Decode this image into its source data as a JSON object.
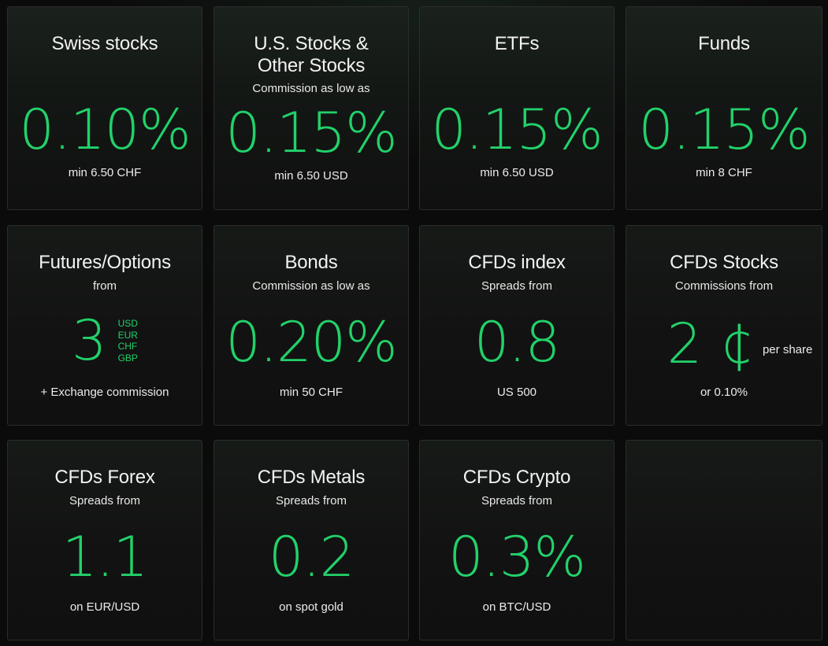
{
  "cards": [
    {
      "title": "Swiss stocks",
      "subtitle": "",
      "value": "0.10%",
      "footnote": "min 6.50 CHF"
    },
    {
      "title": "U.S. Stocks & Other Stocks",
      "subtitle": "Commission as low as",
      "value": "0.15%",
      "footnote": "min 6.50 USD"
    },
    {
      "title": "ETFs",
      "subtitle": "",
      "value": "0.15%",
      "footnote": "min 6.50 USD"
    },
    {
      "title": "Funds",
      "subtitle": "",
      "value": "0.15%",
      "footnote": "min 8 CHF"
    },
    {
      "title": "Futures/Options",
      "subtitle": "from",
      "value": "3",
      "currencies": [
        "USD",
        "EUR",
        "CHF",
        "GBP"
      ],
      "footnote": "+ Exchange commission"
    },
    {
      "title": "Bonds",
      "subtitle": "Commission as low as",
      "value": "0.20%",
      "footnote": "min 50 CHF"
    },
    {
      "title": "CFDs index",
      "subtitle": "Spreads from",
      "value": "0.8",
      "footnote": "US 500"
    },
    {
      "title": "CFDs Stocks",
      "subtitle": "Commissions from",
      "value": "2 ¢",
      "unit": "per share",
      "footnote": "or 0.10%"
    },
    {
      "title": "CFDs Forex",
      "subtitle": "Spreads from",
      "value": "1.1",
      "footnote": "on EUR/USD"
    },
    {
      "title": "CFDs Metals",
      "subtitle": "Spreads from",
      "value": "0.2",
      "footnote": "on spot gold"
    },
    {
      "title": "CFDs Crypto",
      "subtitle": "Spreads from",
      "value": "0.3%",
      "footnote": "on BTC/USD"
    }
  ],
  "colors": {
    "accent": "#22d16a",
    "background": "#0b0b0b",
    "card_border": "#2c2c2c"
  }
}
